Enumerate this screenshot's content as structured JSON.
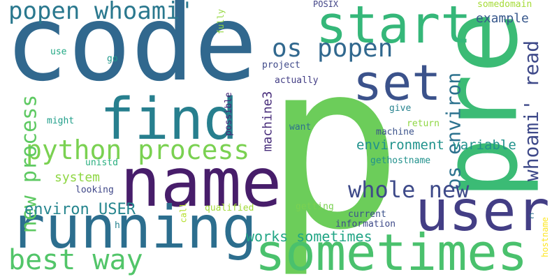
{
  "palette": {
    "dark_purple": "#440154",
    "indigo": "#46337e",
    "slate_blue": "#365c8d",
    "steel_blue": "#3b6fa0",
    "teal_blue": "#277f8e",
    "teal": "#1fa187",
    "sea_green": "#2db27d",
    "green": "#4ac16d",
    "lime": "#6cce59",
    "light_lime": "#a0da39",
    "yellow": "#fde725"
  },
  "words": [
    {
      "text": "code",
      "color": "#31688e",
      "orientation": "horizontal"
    },
    {
      "text": "p",
      "color": "#6ccd5a",
      "orientation": "horizontal"
    },
    {
      "text": "pre",
      "color": "#3bbb75",
      "orientation": "vertical"
    },
    {
      "text": "name",
      "color": "#471d6a",
      "orientation": "horizontal"
    },
    {
      "text": "running",
      "color": "#2c6e8e",
      "orientation": "horizontal"
    },
    {
      "text": "sometimes",
      "color": "#4ac16d",
      "orientation": "horizontal"
    },
    {
      "text": "user",
      "color": "#433e85",
      "orientation": "horizontal"
    },
    {
      "text": "start",
      "color": "#35b779",
      "orientation": "horizontal"
    },
    {
      "text": "find",
      "color": "#277f8e",
      "orientation": "horizontal"
    },
    {
      "text": "set",
      "color": "#3b528b",
      "orientation": "horizontal"
    },
    {
      "text": "popen whoami'",
      "color": "#2a788e",
      "orientation": "horizontal"
    },
    {
      "text": "os popen",
      "color": "#31688e",
      "orientation": "horizontal"
    },
    {
      "text": "python process",
      "color": "#7ad151",
      "orientation": "horizontal"
    },
    {
      "text": "whoami' read",
      "color": "#3e4989",
      "orientation": "vertical"
    },
    {
      "text": "os environ",
      "color": "#2c728e",
      "orientation": "vertical"
    },
    {
      "text": "whole new",
      "color": "#3e4a89",
      "orientation": "horizontal"
    },
    {
      "text": "best way",
      "color": "#52c569",
      "orientation": "horizontal"
    },
    {
      "text": "new process",
      "color": "#5ec962",
      "orientation": "vertical"
    },
    {
      "text": "environ USER",
      "color": "#25858e",
      "orientation": "horizontal"
    },
    {
      "text": "environment variable",
      "color": "#20928c",
      "orientation": "horizontal"
    },
    {
      "text": "works sometimes",
      "color": "#21a585",
      "orientation": "horizontal"
    },
    {
      "text": "system",
      "color": "#8fd744",
      "orientation": "horizontal"
    },
    {
      "text": "example",
      "color": "#38588c",
      "orientation": "horizontal"
    },
    {
      "text": "machine3",
      "color": "#472c7a",
      "orientation": "vertical"
    },
    {
      "text": "somedomain",
      "color": "#a5db36",
      "orientation": "horizontal"
    },
    {
      "text": "POSIX",
      "color": "#414487",
      "orientation": "horizontal"
    },
    {
      "text": "fully",
      "color": "#95d840",
      "orientation": "vertical"
    },
    {
      "text": "use",
      "color": "#22a884",
      "orientation": "horizontal"
    },
    {
      "text": "go",
      "color": "#1f988b",
      "orientation": "horizontal"
    },
    {
      "text": "project",
      "color": "#3e4989",
      "orientation": "horizontal"
    },
    {
      "text": "actually",
      "color": "#433e85",
      "orientation": "horizontal"
    },
    {
      "text": "possible",
      "color": "#482677",
      "orientation": "vertical"
    },
    {
      "text": "give",
      "color": "#26828e",
      "orientation": "horizontal"
    },
    {
      "text": "might",
      "color": "#1f9e89",
      "orientation": "horizontal"
    },
    {
      "text": "want",
      "color": "#2d708e",
      "orientation": "horizontal"
    },
    {
      "text": "return",
      "color": "#8fd744",
      "orientation": "horizontal"
    },
    {
      "text": "machine",
      "color": "#3b528b",
      "orientation": "horizontal"
    },
    {
      "text": "gethostname",
      "color": "#21918c",
      "orientation": "horizontal"
    },
    {
      "text": "unistd",
      "color": "#29af7f",
      "orientation": "horizontal"
    },
    {
      "text": "looking",
      "color": "#3f4788",
      "orientation": "horizontal"
    },
    {
      "text": "getting",
      "color": "#7ad151",
      "orientation": "horizontal"
    },
    {
      "text": "qualified",
      "color": "#a2da37",
      "orientation": "horizontal"
    },
    {
      "text": "call",
      "color": "#b5de2b",
      "orientation": "vertical"
    },
    {
      "text": "current",
      "color": "#3b528b",
      "orientation": "horizontal"
    },
    {
      "text": "information",
      "color": "#3e4a89",
      "orientation": "horizontal"
    },
    {
      "text": "c",
      "color": "#2d708e",
      "orientation": "horizontal"
    },
    {
      "text": "h",
      "color": "#26828e",
      "orientation": "horizontal"
    },
    {
      "text": "hostname",
      "color": "#fde725",
      "orientation": "vertical"
    }
  ]
}
